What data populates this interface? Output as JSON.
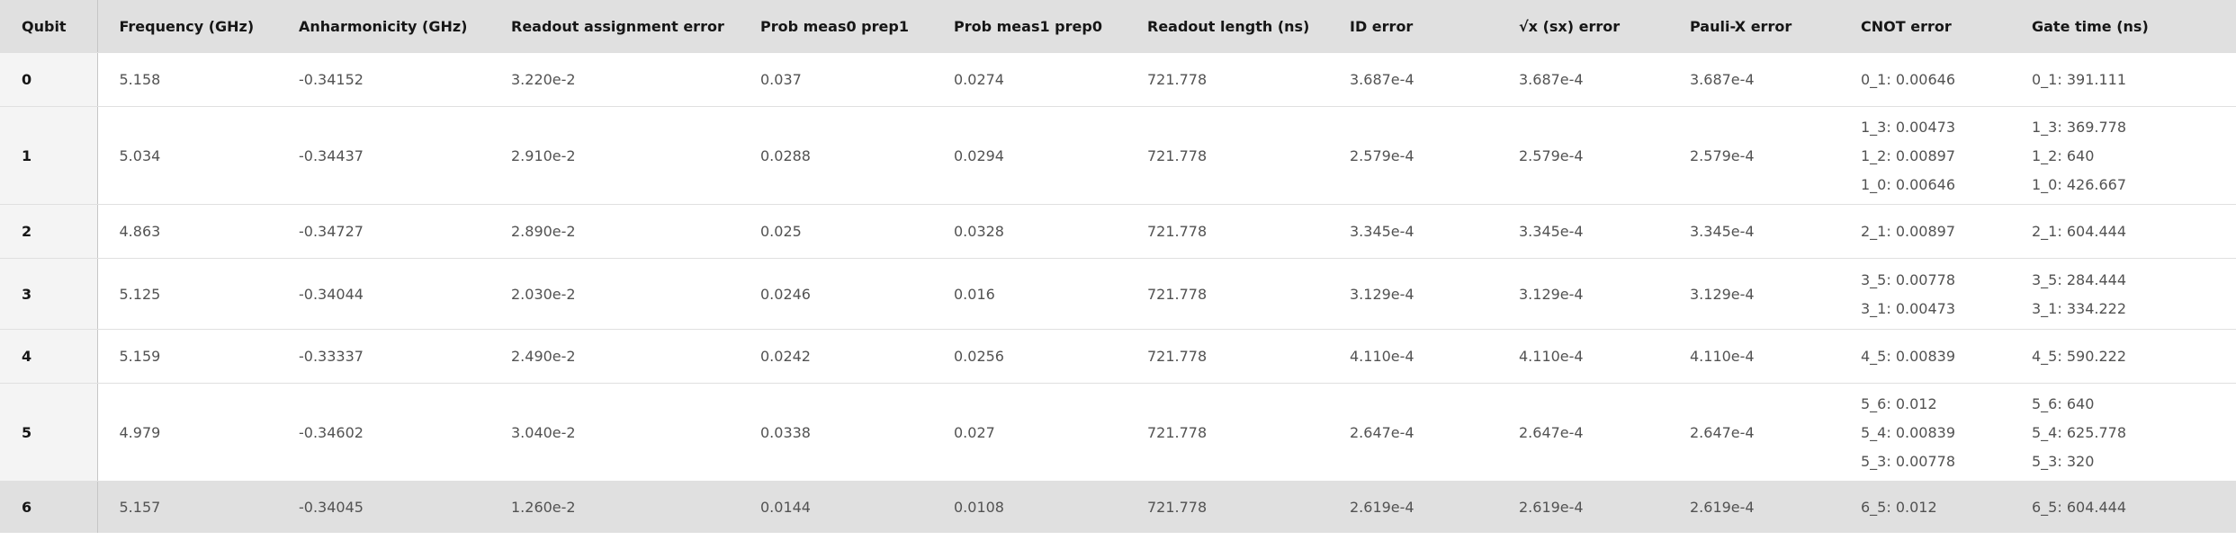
{
  "headers": [
    "Qubit",
    "Frequency (GHz)",
    "Anharmonicity (GHz)",
    "Readout assignment error",
    "Prob meas0 prep1",
    "Prob meas1 prep0",
    "Readout length (ns)",
    "ID error",
    "√x (sx) error",
    "Pauli-X error",
    "CNOT error",
    "Gate time (ns)"
  ],
  "rows": [
    {
      "qubit": "0",
      "frequency": "5.158",
      "anharmonicity": "-0.34152",
      "readout_error": "3.220e-2",
      "prob_meas0_prep1": "0.037",
      "prob_meas1_prep0": "0.0274",
      "readout_length": "721.778",
      "id_error": "3.687e-4",
      "sx_error": "3.687e-4",
      "pauli_x_error": "3.687e-4",
      "cnot_error": [
        "0_1: 0.00646"
      ],
      "gate_time": [
        "0_1: 391.111"
      ]
    },
    {
      "qubit": "1",
      "frequency": "5.034",
      "anharmonicity": "-0.34437",
      "readout_error": "2.910e-2",
      "prob_meas0_prep1": "0.0288",
      "prob_meas1_prep0": "0.0294",
      "readout_length": "721.778",
      "id_error": "2.579e-4",
      "sx_error": "2.579e-4",
      "pauli_x_error": "2.579e-4",
      "cnot_error": [
        "1_3: 0.00473",
        "1_2: 0.00897",
        "1_0: 0.00646"
      ],
      "gate_time": [
        "1_3: 369.778",
        "1_2: 640",
        "1_0: 426.667"
      ]
    },
    {
      "qubit": "2",
      "frequency": "4.863",
      "anharmonicity": "-0.34727",
      "readout_error": "2.890e-2",
      "prob_meas0_prep1": "0.025",
      "prob_meas1_prep0": "0.0328",
      "readout_length": "721.778",
      "id_error": "3.345e-4",
      "sx_error": "3.345e-4",
      "pauli_x_error": "3.345e-4",
      "cnot_error": [
        "2_1: 0.00897"
      ],
      "gate_time": [
        "2_1: 604.444"
      ]
    },
    {
      "qubit": "3",
      "frequency": "5.125",
      "anharmonicity": "-0.34044",
      "readout_error": "2.030e-2",
      "prob_meas0_prep1": "0.0246",
      "prob_meas1_prep0": "0.016",
      "readout_length": "721.778",
      "id_error": "3.129e-4",
      "sx_error": "3.129e-4",
      "pauli_x_error": "3.129e-4",
      "cnot_error": [
        "3_5: 0.00778",
        "3_1: 0.00473"
      ],
      "gate_time": [
        "3_5: 284.444",
        "3_1: 334.222"
      ]
    },
    {
      "qubit": "4",
      "frequency": "5.159",
      "anharmonicity": "-0.33337",
      "readout_error": "2.490e-2",
      "prob_meas0_prep1": "0.0242",
      "prob_meas1_prep0": "0.0256",
      "readout_length": "721.778",
      "id_error": "4.110e-4",
      "sx_error": "4.110e-4",
      "pauli_x_error": "4.110e-4",
      "cnot_error": [
        "4_5: 0.00839"
      ],
      "gate_time": [
        "4_5: 590.222"
      ]
    },
    {
      "qubit": "5",
      "frequency": "4.979",
      "anharmonicity": "-0.34602",
      "readout_error": "3.040e-2",
      "prob_meas0_prep1": "0.0338",
      "prob_meas1_prep0": "0.027",
      "readout_length": "721.778",
      "id_error": "2.647e-4",
      "sx_error": "2.647e-4",
      "pauli_x_error": "2.647e-4",
      "cnot_error": [
        "5_6: 0.012",
        "5_4: 0.00839",
        "5_3: 0.00778"
      ],
      "gate_time": [
        "5_6: 640",
        "5_4: 625.778",
        "5_3: 320"
      ]
    },
    {
      "qubit": "6",
      "frequency": "5.157",
      "anharmonicity": "-0.34045",
      "readout_error": "1.260e-2",
      "prob_meas0_prep1": "0.0144",
      "prob_meas1_prep0": "0.0108",
      "readout_length": "721.778",
      "id_error": "2.619e-4",
      "sx_error": "2.619e-4",
      "pauli_x_error": "2.619e-4",
      "cnot_error": [
        "6_5: 0.012"
      ],
      "gate_time": [
        "6_5: 604.444"
      ]
    }
  ]
}
